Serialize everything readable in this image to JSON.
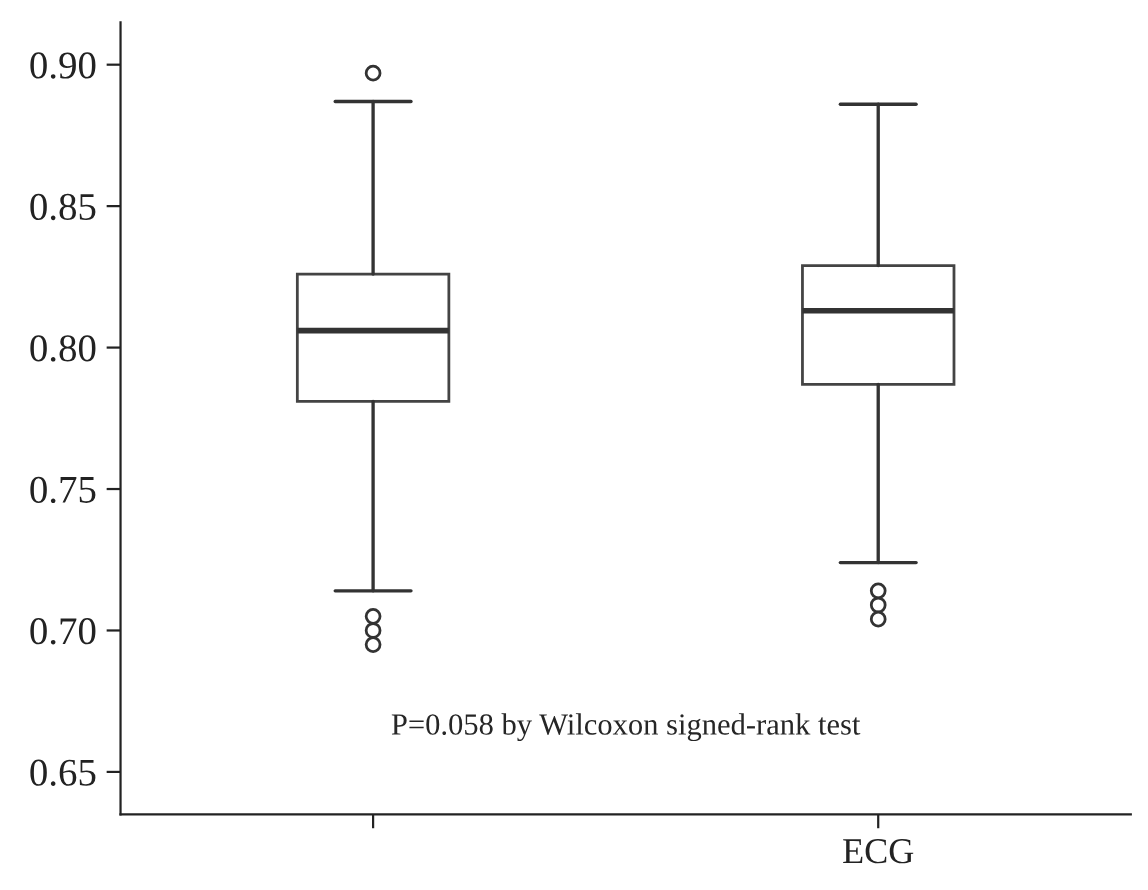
{
  "chart_data": {
    "type": "box",
    "categories": [
      null,
      "ECG"
    ],
    "boxes": [
      {
        "low": 0.714,
        "q1": 0.781,
        "median": 0.806,
        "q3": 0.826,
        "high": 0.887,
        "outliers": [
          0.897,
          0.705,
          0.7,
          0.695
        ]
      },
      {
        "low": 0.724,
        "q1": 0.787,
        "median": 0.813,
        "q3": 0.829,
        "high": 0.886,
        "outliers": [
          0.714,
          0.709,
          0.704
        ]
      }
    ],
    "ylim": [
      0.635,
      0.915
    ],
    "yticks": [
      {
        "value": 0.65,
        "label": "0.65"
      },
      {
        "value": 0.7,
        "label": "0.70"
      },
      {
        "value": 0.75,
        "label": "0.75"
      },
      {
        "value": 0.8,
        "label": "0.80"
      },
      {
        "value": 0.85,
        "label": "0.85"
      },
      {
        "value": 0.9,
        "label": "0.90"
      }
    ],
    "annotations": [
      "P=0.058 by Wilcoxon signed-rank test"
    ],
    "grid": false,
    "legend": false
  }
}
